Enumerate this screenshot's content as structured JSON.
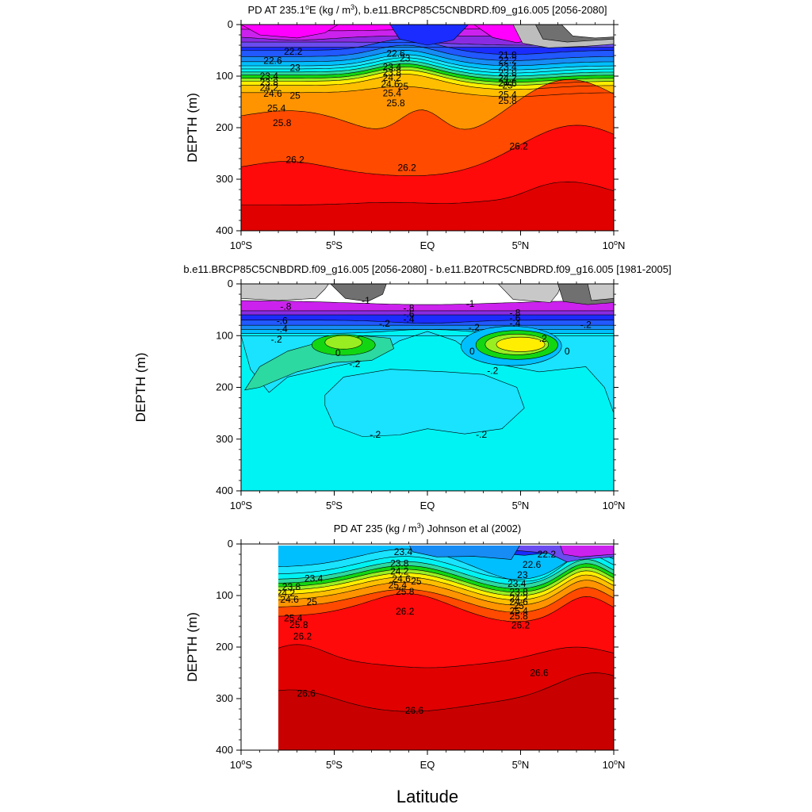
{
  "figure": {
    "xlabel": "Latitude"
  },
  "chart_data": [
    {
      "type": "heatmap",
      "title": "PD AT 235.1°E (kg / m³), b.e11.BRCP85C5CNBDRD.f09_g16.005 [2056-2080]",
      "title_parts": {
        "a": "PD AT 235.1",
        "sup1": "o",
        "b": "E (kg / m",
        "sup2": "3",
        "c": "), b.e11.BRCP85C5CNBDRD.f09_g16.005 [2056-2080]"
      },
      "xlabel": "",
      "ylabel": "DEPTH (m)",
      "xlim": [
        -10,
        10
      ],
      "ylim": [
        0,
        400
      ],
      "y_inverted": true,
      "x_ticks": [
        {
          "v": -10,
          "n": "10",
          "h": "S"
        },
        {
          "v": -5,
          "n": "5",
          "h": "S"
        },
        {
          "v": 0,
          "n": "EQ",
          "h": ""
        },
        {
          "v": 5,
          "n": "5",
          "h": "N"
        },
        {
          "v": 10,
          "n": "10",
          "h": "N"
        }
      ],
      "y_ticks": [
        0,
        100,
        200,
        300,
        400
      ],
      "grid": false,
      "contour_levels": [
        21.8,
        22.2,
        22.6,
        23,
        23.4,
        23.8,
        24.2,
        24.6,
        25,
        25.4,
        25.8,
        26.2
      ],
      "contour_labels": [
        {
          "text": "22.2",
          "x": -7.2,
          "y": 52
        },
        {
          "text": "22.6",
          "x": -8.3,
          "y": 70
        },
        {
          "text": "23",
          "x": -7.1,
          "y": 84
        },
        {
          "text": "23.4",
          "x": -8.5,
          "y": 100
        },
        {
          "text": "23.8",
          "x": -8.5,
          "y": 112
        },
        {
          "text": "24.2",
          "x": -8.5,
          "y": 122
        },
        {
          "text": "24.6",
          "x": -8.3,
          "y": 134
        },
        {
          "text": "25",
          "x": -7.1,
          "y": 138
        },
        {
          "text": "25.4",
          "x": -8.1,
          "y": 162
        },
        {
          "text": "25.8",
          "x": -7.8,
          "y": 191
        },
        {
          "text": "26.2",
          "x": -7.1,
          "y": 262
        },
        {
          "text": "22.6",
          "x": -1.7,
          "y": 56
        },
        {
          "text": "23",
          "x": -1.2,
          "y": 65
        },
        {
          "text": "23.4",
          "x": -1.9,
          "y": 82
        },
        {
          "text": "23.8",
          "x": -1.9,
          "y": 93
        },
        {
          "text": "24.2",
          "x": -1.9,
          "y": 103
        },
        {
          "text": "24.6",
          "x": -2.0,
          "y": 115
        },
        {
          "text": "25",
          "x": -1.3,
          "y": 120
        },
        {
          "text": "25.4",
          "x": -1.9,
          "y": 133
        },
        {
          "text": "25.8",
          "x": -1.7,
          "y": 152
        },
        {
          "text": "26.2",
          "x": -1.1,
          "y": 278
        },
        {
          "text": "21.8",
          "x": 4.3,
          "y": 59
        },
        {
          "text": "22.2",
          "x": 4.3,
          "y": 69
        },
        {
          "text": "23.4",
          "x": 4.3,
          "y": 82
        },
        {
          "text": "23.8",
          "x": 4.3,
          "y": 94
        },
        {
          "text": "24.2",
          "x": 4.3,
          "y": 104
        },
        {
          "text": "24.6",
          "x": 4.3,
          "y": 114
        },
        {
          "text": "25",
          "x": 4.3,
          "y": 118
        },
        {
          "text": "25.4",
          "x": 4.3,
          "y": 136
        },
        {
          "text": "25.8",
          "x": 4.3,
          "y": 148
        },
        {
          "text": "26.2",
          "x": 4.9,
          "y": 236
        }
      ]
    },
    {
      "type": "heatmap",
      "title": "b.e11.BRCP85C5CNBDRD.f09_g16.005 [2056-2080] - b.e11.B20TRC5CNBDRD.f09_g16.005 [1981-2005]",
      "xlabel": "",
      "ylabel": "DEPTH (m)",
      "xlim": [
        -10,
        10
      ],
      "ylim": [
        0,
        400
      ],
      "y_inverted": true,
      "x_ticks": [
        {
          "v": -10,
          "n": "10",
          "h": "S"
        },
        {
          "v": -5,
          "n": "5",
          "h": "S"
        },
        {
          "v": 0,
          "n": "EQ",
          "h": ""
        },
        {
          "v": 5,
          "n": "5",
          "h": "N"
        },
        {
          "v": 10,
          "n": "10",
          "h": "N"
        }
      ],
      "y_ticks": [
        0,
        100,
        200,
        300,
        400
      ],
      "grid": false,
      "contour_levels": [
        -1,
        -0.8,
        -0.6,
        -0.4,
        -0.2,
        0,
        0.2
      ],
      "contour_labels": [
        {
          "text": "-1",
          "x": -3.3,
          "y": 32
        },
        {
          "text": "-.8",
          "x": -7.6,
          "y": 44
        },
        {
          "text": "-.6",
          "x": -7.8,
          "y": 71
        },
        {
          "text": "-.4",
          "x": -7.8,
          "y": 87
        },
        {
          "text": "-.2",
          "x": -8.1,
          "y": 107
        },
        {
          "text": "0",
          "x": -4.8,
          "y": 133
        },
        {
          "text": "-",
          "x": -3.7,
          "y": 101
        },
        {
          "text": "-.2",
          "x": -3.9,
          "y": 155
        },
        {
          "text": "-.2",
          "x": -2.8,
          "y": 291
        },
        {
          "text": "-.2",
          "x": -2.3,
          "y": 77
        },
        {
          "text": "-.8",
          "x": -1.0,
          "y": 47
        },
        {
          "text": "-.6",
          "x": -1.0,
          "y": 58
        },
        {
          "text": "-.4",
          "x": -1.0,
          "y": 68
        },
        {
          "text": "-1",
          "x": 2.3,
          "y": 38
        },
        {
          "text": "-.2",
          "x": 2.5,
          "y": 84
        },
        {
          "text": "0",
          "x": 2.4,
          "y": 130
        },
        {
          "text": "-.2",
          "x": 3.5,
          "y": 168
        },
        {
          "text": "-.2",
          "x": 2.9,
          "y": 291
        },
        {
          "text": "-.8",
          "x": 4.7,
          "y": 56
        },
        {
          "text": "-.6",
          "x": 4.7,
          "y": 66
        },
        {
          "text": "-.4",
          "x": 4.7,
          "y": 76
        },
        {
          "text": "-.2",
          "x": 8.5,
          "y": 79
        },
        {
          "text": ".2",
          "x": 6.2,
          "y": 106
        },
        {
          "text": "0",
          "x": 7.5,
          "y": 130
        }
      ]
    },
    {
      "type": "heatmap",
      "title": "PD AT 235 (kg / m³) Johnson et al (2002)",
      "title_parts": {
        "a": "PD AT 235 (kg / m",
        "sup": "3",
        "b": ") Johnson et al (2002)"
      },
      "xlabel": "",
      "ylabel": "DEPTH (m)",
      "xlim": [
        -10,
        10
      ],
      "ylim": [
        0,
        400
      ],
      "y_inverted": true,
      "x_ticks": [
        {
          "v": -10,
          "n": "10",
          "h": "S"
        },
        {
          "v": -5,
          "n": "5",
          "h": "S"
        },
        {
          "v": 0,
          "n": "EQ",
          "h": ""
        },
        {
          "v": 5,
          "n": "5",
          "h": "N"
        },
        {
          "v": 10,
          "n": "10",
          "h": "N"
        }
      ],
      "y_ticks": [
        0,
        100,
        200,
        300,
        400
      ],
      "grid": false,
      "data_start_x": -8,
      "contour_levels": [
        22.2,
        22.6,
        23,
        23.4,
        23.8,
        24.2,
        24.6,
        25,
        25.4,
        25.8,
        26.2,
        26.6
      ],
      "contour_labels": [
        {
          "text": "23.4",
          "x": -6.1,
          "y": 67
        },
        {
          "text": "23.8",
          "x": -7.3,
          "y": 83
        },
        {
          "text": "24.2",
          "x": -7.6,
          "y": 95
        },
        {
          "text": "24.6",
          "x": -7.4,
          "y": 108
        },
        {
          "text": "25",
          "x": -6.2,
          "y": 112
        },
        {
          "text": "25.4",
          "x": -7.2,
          "y": 144
        },
        {
          "text": "25.8",
          "x": -6.9,
          "y": 157
        },
        {
          "text": "26.2",
          "x": -6.7,
          "y": 179
        },
        {
          "text": "26.6",
          "x": -6.5,
          "y": 290
        },
        {
          "text": "23.4",
          "x": -1.3,
          "y": 15
        },
        {
          "text": "23.8",
          "x": -1.5,
          "y": 38
        },
        {
          "text": "24.2",
          "x": -1.5,
          "y": 53
        },
        {
          "text": "24.6",
          "x": -1.4,
          "y": 68
        },
        {
          "text": "25",
          "x": -0.6,
          "y": 72
        },
        {
          "text": "25.4",
          "x": -1.6,
          "y": 80
        },
        {
          "text": "25.8",
          "x": -1.2,
          "y": 92
        },
        {
          "text": "26.2",
          "x": -1.2,
          "y": 131
        },
        {
          "text": "26.6",
          "x": -0.7,
          "y": 323
        },
        {
          "text": "22.2",
          "x": 6.4,
          "y": 20
        },
        {
          "text": "22.6",
          "x": 5.6,
          "y": 40
        },
        {
          "text": "23",
          "x": 5.1,
          "y": 60
        },
        {
          "text": "23.4",
          "x": 4.8,
          "y": 77
        },
        {
          "text": "23.8",
          "x": 4.9,
          "y": 93
        },
        {
          "text": "24.2",
          "x": 4.9,
          "y": 105
        },
        {
          "text": "24.6",
          "x": 4.9,
          "y": 112
        },
        {
          "text": "25",
          "x": 4.9,
          "y": 120
        },
        {
          "text": "25.4",
          "x": 4.9,
          "y": 130
        },
        {
          "text": "25.8",
          "x": 4.9,
          "y": 140
        },
        {
          "text": "26.2",
          "x": 5.0,
          "y": 158
        },
        {
          "text": "26.6",
          "x": 6.0,
          "y": 250
        }
      ]
    }
  ],
  "colors": {
    "magenta": "#ff00ff",
    "violet": "#cc22ee",
    "purple": "#8a2be2",
    "indigo": "#6a4cf0",
    "blue": "#1a2cff",
    "royal": "#2158ff",
    "azure": "#168cf4",
    "sky": "#00bfff",
    "cyan": "#19e3ff",
    "aqua": "#00f3f3",
    "teal": "#2cd9a0",
    "green": "#12d612",
    "lime": "#99ee22",
    "yellow": "#ffee00",
    "gold": "#ffbf00",
    "orange": "#ff9400",
    "redorange": "#ff4a00",
    "red": "#ff0a0a",
    "darkred": "#e00000",
    "maroon": "#c80000",
    "gray": "#707070",
    "lightgray": "#bdbdbd",
    "silver": "#c8c8c8"
  }
}
